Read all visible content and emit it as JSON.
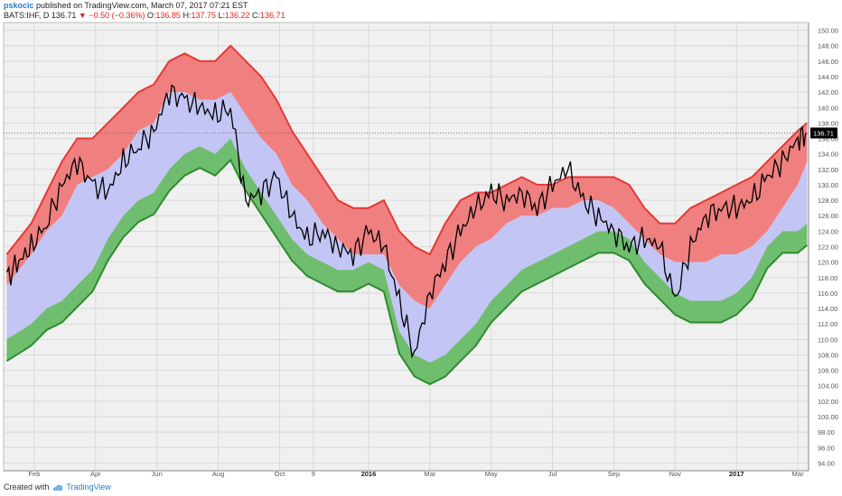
{
  "header": {
    "author": "pskocic",
    "published": "published on TradingView.com, March 07, 2017 07:21 EST"
  },
  "ohlc": {
    "symbol": "BATS:IHF, D",
    "last": "136.71",
    "change": "▼ −0.50 (−0.36%)",
    "o_label": "O:",
    "o": "136.85",
    "h_label": "H:",
    "h": "137.75",
    "l_label": "L:",
    "l": "136.22",
    "c_label": "C:",
    "c": "136.71"
  },
  "footer": {
    "created": "Created with",
    "brand": "TradingView"
  },
  "colors": {
    "upper_band": "#f08080",
    "upper_edge": "#e53935",
    "mid_band": "#c3c5f5",
    "lower_band": "#6fbd6f",
    "lower_edge": "#2e8b2e",
    "price": "#000000",
    "background": "#f0f0f0"
  },
  "chart_data": {
    "type": "line",
    "y_axis_side": "right",
    "ylim": [
      93,
      151
    ],
    "price_label": "136.71",
    "y_ticks": [
      "150.00",
      "148.00",
      "146.00",
      "144.00",
      "142.00",
      "140.00",
      "138.00",
      "136.00",
      "134.00",
      "132.00",
      "130.00",
      "128.00",
      "126.00",
      "124.00",
      "122.00",
      "120.00",
      "118.00",
      "116.00",
      "114.00",
      "112.00",
      "110.00",
      "108.00",
      "106.00",
      "104.00",
      "102.00",
      "100.00",
      "98.00",
      "96.00",
      "94.00"
    ],
    "x_ticks": [
      {
        "label": "Feb",
        "t": 0.1,
        "bold": false
      },
      {
        "label": "Apr",
        "t": 2.1,
        "bold": false
      },
      {
        "label": "Jun",
        "t": 4.1,
        "bold": false
      },
      {
        "label": "Aug",
        "t": 6.1,
        "bold": false
      },
      {
        "label": "Oct",
        "t": 8.1,
        "bold": false
      },
      {
        "label": "9",
        "t": 9.2,
        "bold": false
      },
      {
        "label": "2016",
        "t": 11.0,
        "bold": true
      },
      {
        "label": "Mar",
        "t": 13.0,
        "bold": false
      },
      {
        "label": "May",
        "t": 15.0,
        "bold": false
      },
      {
        "label": "Jul",
        "t": 17.0,
        "bold": false
      },
      {
        "label": "Sep",
        "t": 19.0,
        "bold": false
      },
      {
        "label": "Nov",
        "t": 21.0,
        "bold": false
      },
      {
        "label": "2017",
        "t": 23.0,
        "bold": true
      },
      {
        "label": "Mar",
        "t": 25.0,
        "bold": false
      }
    ],
    "t": [
      -0.8,
      -0.4,
      0.0,
      0.5,
      1.0,
      1.5,
      2.0,
      2.5,
      3.0,
      3.5,
      4.0,
      4.5,
      5.0,
      5.5,
      6.0,
      6.5,
      7.0,
      7.5,
      8.0,
      8.5,
      9.0,
      9.5,
      10.0,
      10.5,
      11.0,
      11.5,
      12.0,
      12.5,
      13.0,
      13.5,
      14.0,
      14.5,
      15.0,
      15.5,
      16.0,
      16.5,
      17.0,
      17.5,
      18.0,
      18.5,
      19.0,
      19.5,
      20.0,
      20.5,
      21.0,
      21.5,
      22.0,
      22.5,
      23.0,
      23.5,
      24.0,
      24.5,
      25.0,
      25.3
    ],
    "upper": [
      121,
      123,
      125,
      129,
      133,
      136,
      136,
      138,
      140,
      142,
      143,
      146,
      147,
      146,
      146,
      148,
      146,
      144,
      141,
      137,
      134,
      131,
      128,
      127,
      127,
      128,
      124,
      122,
      121,
      125,
      128,
      129,
      129,
      130,
      131,
      130,
      130,
      131,
      131,
      131,
      131,
      130,
      127,
      125,
      125,
      127,
      128,
      129,
      130,
      131,
      133,
      135,
      137,
      138
    ],
    "middle": [
      117,
      119,
      121,
      124,
      126,
      130,
      131,
      132,
      134,
      137,
      138,
      142,
      142,
      141,
      141,
      142,
      139,
      136,
      134,
      130,
      128,
      125,
      123,
      121,
      121,
      121,
      117,
      115,
      114,
      117,
      120,
      122,
      123,
      125,
      126,
      126,
      127,
      127,
      128,
      128,
      127,
      125,
      123,
      121,
      120,
      120,
      120,
      121,
      121,
      122,
      124,
      127,
      130,
      133
    ],
    "lower": [
      110,
      111,
      112,
      114,
      115,
      117,
      119,
      123,
      126,
      128,
      129,
      132,
      134,
      135,
      134,
      136,
      132,
      129,
      126,
      123,
      121,
      120,
      119,
      119,
      120,
      119,
      111,
      108,
      107,
      108,
      110,
      112,
      115,
      117,
      119,
      120,
      121,
      122,
      123,
      124,
      124,
      123,
      120,
      118,
      116,
      115,
      115,
      115,
      116,
      118,
      122,
      124,
      124,
      125
    ],
    "price": [
      118,
      120,
      122,
      125,
      130,
      133,
      130,
      129,
      133,
      135,
      137,
      142,
      141,
      140,
      139,
      140,
      128,
      129,
      131,
      126,
      123,
      124,
      122,
      121,
      124,
      122,
      115,
      108,
      116,
      120,
      124,
      127,
      129,
      128,
      129,
      127,
      130,
      132,
      128,
      126,
      124,
      122,
      123,
      122,
      115,
      122,
      126,
      127,
      127,
      128,
      131,
      133,
      136,
      136.71
    ]
  }
}
